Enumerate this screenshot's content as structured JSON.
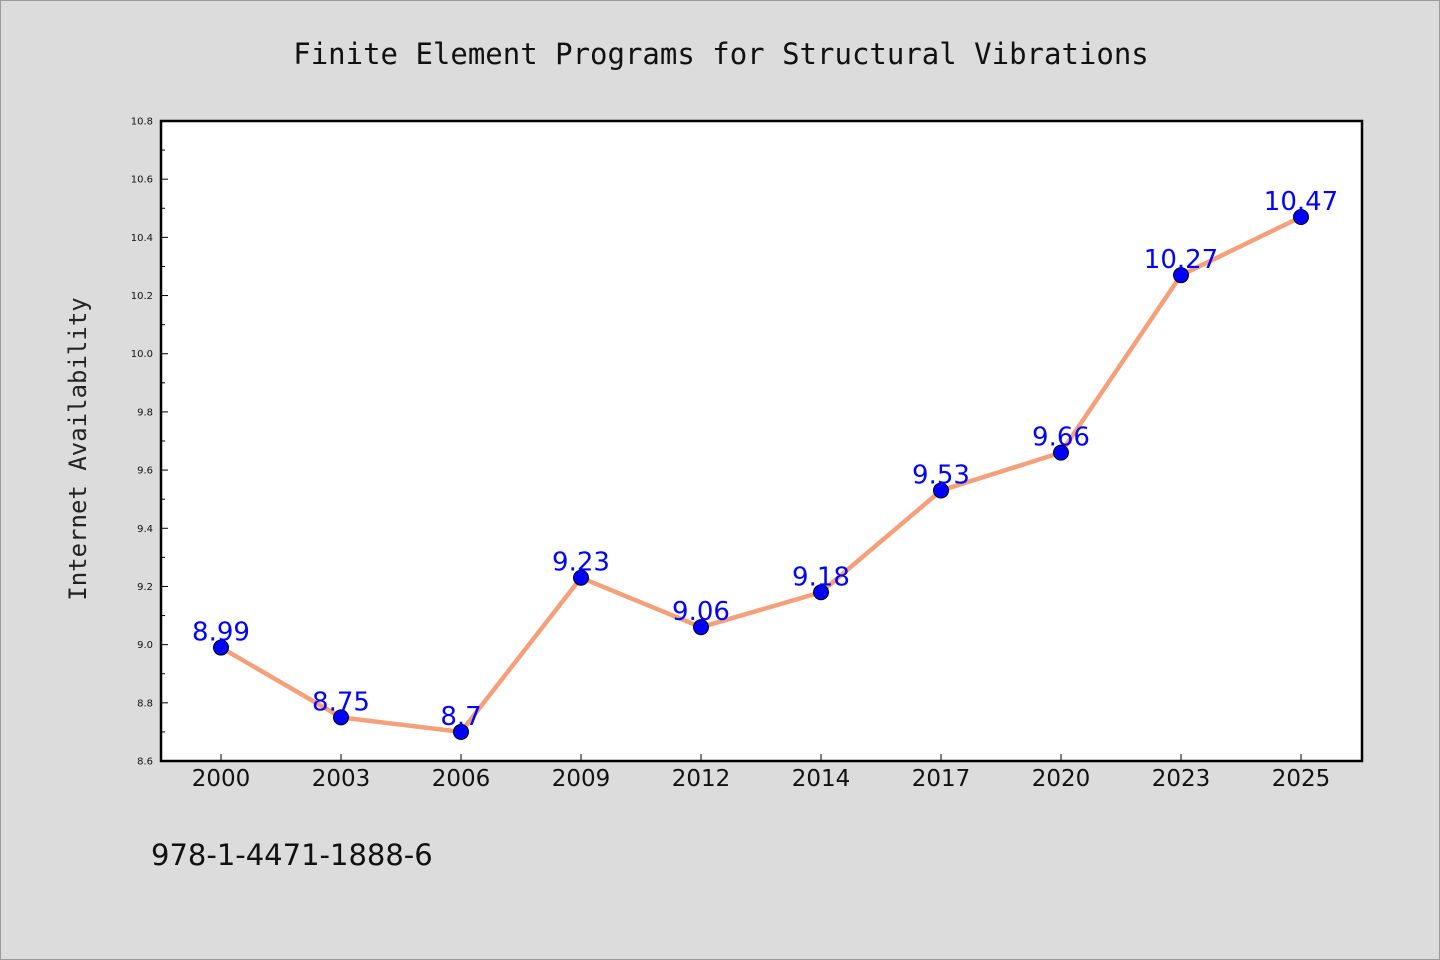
{
  "chart_data": {
    "type": "line",
    "title": "Finite Element Programs for Structural Vibrations",
    "xlabel": "",
    "ylabel": "Internet Availability",
    "categories": [
      "2000",
      "2003",
      "2006",
      "2009",
      "2012",
      "2014",
      "2017",
      "2020",
      "2023",
      "2025"
    ],
    "series": [
      {
        "values": [
          8.99,
          8.75,
          8.7,
          9.23,
          9.06,
          9.18,
          9.53,
          9.66,
          10.27,
          10.47
        ],
        "labels": [
          "8.99",
          "8.75",
          "8.7",
          "9.23",
          "9.06",
          "9.18",
          "9.53",
          "9.66",
          "10.27",
          "10.47"
        ],
        "line_color": "#f4a07a",
        "marker_color": "#0000ff"
      }
    ],
    "ylim": [
      8.6,
      10.8
    ],
    "yticks": [
      "8.6",
      "8.8",
      "9.0",
      "9.2",
      "9.4",
      "9.6",
      "9.8",
      "10.0",
      "10.2",
      "10.4",
      "10.6",
      "10.8"
    ],
    "grid": false,
    "legend": "none",
    "background": "#dcdcdc",
    "plot_background": "#ffffff",
    "data_label_color": "#0000ff"
  },
  "footer": {
    "isbn": "978-1-4471-1888-6"
  }
}
